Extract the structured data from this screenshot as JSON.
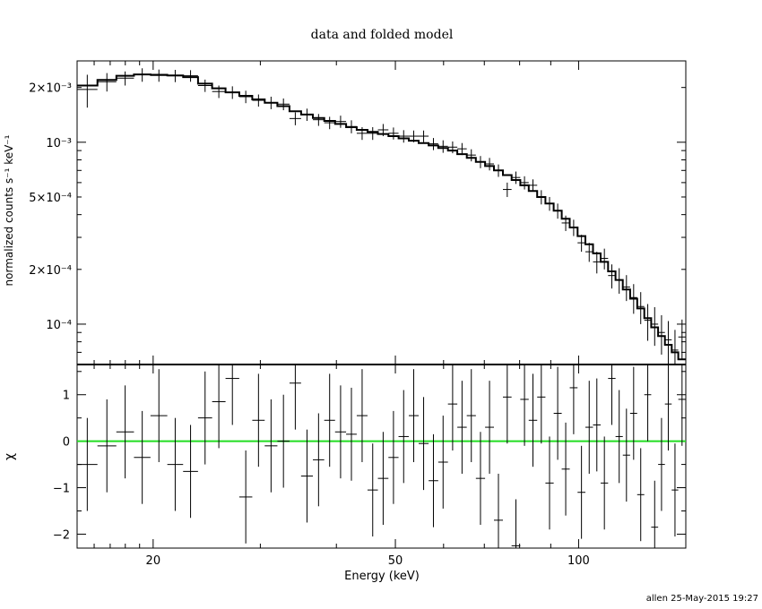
{
  "title": "data and folded model",
  "footer": "allen 25-May-2015 19:27",
  "chart_data": [
    {
      "type": "scatter",
      "panel": "top",
      "xlabel": "Energy (keV)",
      "ylabel": "normalized counts s⁻¹ keV⁻¹",
      "xscale": "log",
      "yscale": "log",
      "xlim": [
        15,
        150
      ],
      "ylim": [
        6e-05,
        0.0028
      ],
      "y_ticks": [
        {
          "value": 0.0001,
          "label": "10⁻⁴"
        },
        {
          "value": 0.0002,
          "label": "2×10⁻⁴"
        },
        {
          "value": 0.0005,
          "label": "5×10⁻⁴"
        },
        {
          "value": 0.001,
          "label": "10⁻³"
        },
        {
          "value": 0.002,
          "label": "2×10⁻³"
        }
      ],
      "series": [
        {
          "kind": "data",
          "color": "#000000",
          "points": [
            [
              15.0,
              16.2,
              0.00195,
              0.0004
            ],
            [
              16.2,
              17.4,
              0.00215,
              0.00025
            ],
            [
              17.4,
              18.6,
              0.00225,
              0.0002
            ],
            [
              18.6,
              19.8,
              0.00235,
              0.0002
            ],
            [
              19.8,
              21.1,
              0.00233,
              0.00018
            ],
            [
              21.1,
              22.4,
              0.00232,
              0.00018
            ],
            [
              22.4,
              23.7,
              0.00232,
              0.00017
            ],
            [
              23.7,
              25.0,
              0.00205,
              0.00016
            ],
            [
              25.0,
              26.3,
              0.0019,
              0.00015
            ],
            [
              26.3,
              27.7,
              0.00188,
              0.00015
            ],
            [
              27.7,
              29.1,
              0.00178,
              0.00014
            ],
            [
              29.1,
              30.5,
              0.0017,
              0.00013
            ],
            [
              30.5,
              32.0,
              0.00165,
              0.00013
            ],
            [
              32.0,
              33.5,
              0.00162,
              0.00012
            ],
            [
              33.5,
              35.0,
              0.00135,
              0.00011
            ],
            [
              35.0,
              36.6,
              0.00142,
              0.00011
            ],
            [
              36.6,
              38.2,
              0.00133,
              0.0001
            ],
            [
              38.2,
              39.8,
              0.00128,
              0.0001
            ],
            [
              39.8,
              41.5,
              0.0013,
              0.0001
            ],
            [
              41.5,
              43.2,
              0.00122,
              0.0001
            ],
            [
              43.2,
              45.0,
              0.00112,
              9e-05
            ],
            [
              45.0,
              46.8,
              0.00112,
              9e-05
            ],
            [
              46.8,
              48.7,
              0.00117,
              9e-05
            ],
            [
              48.7,
              50.6,
              0.00112,
              8.5e-05
            ],
            [
              50.6,
              52.6,
              0.00108,
              8.5e-05
            ],
            [
              52.6,
              54.6,
              0.00108,
              8e-05
            ],
            [
              54.6,
              56.7,
              0.00108,
              8e-05
            ],
            [
              56.7,
              58.8,
              0.00098,
              7.5e-05
            ],
            [
              58.8,
              61.0,
              0.00095,
              7.5e-05
            ],
            [
              61.0,
              63.2,
              0.00094,
              7e-05
            ],
            [
              63.2,
              65.5,
              0.00092,
              7e-05
            ],
            [
              65.5,
              67.8,
              0.00085,
              6.5e-05
            ],
            [
              67.8,
              70.2,
              0.00078,
              6e-05
            ],
            [
              70.2,
              72.6,
              0.00076,
              6e-05
            ],
            [
              72.6,
              75.1,
              0.0007,
              5.5e-05
            ],
            [
              75.1,
              77.6,
              0.00055,
              5e-05
            ],
            [
              77.6,
              80.2,
              0.00064,
              5e-05
            ],
            [
              80.2,
              82.8,
              0.0006,
              5e-05
            ],
            [
              82.8,
              85.5,
              0.00058,
              4.5e-05
            ],
            [
              85.5,
              88.2,
              0.0005,
              4.5e-05
            ],
            [
              88.2,
              91.0,
              0.00046,
              4e-05
            ],
            [
              91.0,
              93.8,
              0.00042,
              4e-05
            ],
            [
              93.8,
              96.7,
              0.00036,
              3.5e-05
            ],
            [
              96.7,
              99.6,
              0.00034,
              3.5e-05
            ],
            [
              99.6,
              102.6,
              0.00028,
              3e-05
            ],
            [
              102.6,
              105.6,
              0.00025,
              3e-05
            ],
            [
              105.6,
              108.7,
              0.00022,
              3e-05
            ],
            [
              108.7,
              111.8,
              0.00023,
              3e-05
            ],
            [
              111.8,
              115.0,
              0.000185,
              2.8e-05
            ],
            [
              115.0,
              118.2,
              0.000175,
              2.8e-05
            ],
            [
              118.2,
              121.5,
              0.00016,
              2.6e-05
            ],
            [
              121.5,
              124.8,
              0.00014,
              2.6e-05
            ],
            [
              124.8,
              128.2,
              0.000125,
              2.5e-05
            ],
            [
              128.2,
              131.6,
              0.000105,
              2.4e-05
            ],
            [
              131.6,
              135.1,
              0.0001,
              2.4e-05
            ],
            [
              135.1,
              138.6,
              9e-05,
              2.2e-05
            ],
            [
              138.6,
              142.2,
              8.2e-05,
              2.2e-05
            ],
            [
              142.2,
              145.8,
              7.2e-05,
              2.1e-05
            ],
            [
              145.8,
              150.0,
              8.5e-05,
              2.1e-05
            ]
          ]
        },
        {
          "kind": "model",
          "color": "#000000",
          "steps": [
            [
              15.0,
              16.2,
              0.00205
            ],
            [
              16.2,
              17.4,
              0.0022
            ],
            [
              17.4,
              18.6,
              0.00232
            ],
            [
              18.6,
              19.8,
              0.00236
            ],
            [
              19.8,
              21.1,
              0.00235
            ],
            [
              21.1,
              22.4,
              0.00233
            ],
            [
              22.4,
              23.7,
              0.00228
            ],
            [
              23.7,
              25.0,
              0.0021
            ],
            [
              25.0,
              26.3,
              0.00198
            ],
            [
              26.3,
              27.7,
              0.00188
            ],
            [
              27.7,
              29.1,
              0.0018
            ],
            [
              29.1,
              30.5,
              0.00172
            ],
            [
              30.5,
              32.0,
              0.00165
            ],
            [
              32.0,
              33.5,
              0.00158
            ],
            [
              33.5,
              35.0,
              0.00148
            ],
            [
              35.0,
              36.6,
              0.00142
            ],
            [
              36.6,
              38.2,
              0.00136
            ],
            [
              38.2,
              39.8,
              0.00131
            ],
            [
              39.8,
              41.5,
              0.00126
            ],
            [
              41.5,
              43.2,
              0.00121
            ],
            [
              43.2,
              45.0,
              0.00117
            ],
            [
              45.0,
              46.8,
              0.00114
            ],
            [
              46.8,
              48.7,
              0.00111
            ],
            [
              48.7,
              50.6,
              0.00108
            ],
            [
              50.6,
              52.6,
              0.00105
            ],
            [
              52.6,
              54.6,
              0.00102
            ],
            [
              54.6,
              56.7,
              0.00099
            ],
            [
              56.7,
              58.8,
              0.00096
            ],
            [
              58.8,
              61.0,
              0.00093
            ],
            [
              61.0,
              63.2,
              0.0009
            ],
            [
              63.2,
              65.5,
              0.00086
            ],
            [
              65.5,
              67.8,
              0.00082
            ],
            [
              67.8,
              70.2,
              0.00078
            ],
            [
              70.2,
              72.6,
              0.00074
            ],
            [
              72.6,
              75.1,
              0.0007
            ],
            [
              75.1,
              77.6,
              0.00066
            ],
            [
              77.6,
              80.2,
              0.00062
            ],
            [
              80.2,
              82.8,
              0.00058
            ],
            [
              82.8,
              85.5,
              0.00054
            ],
            [
              85.5,
              88.2,
              0.0005
            ],
            [
              88.2,
              91.0,
              0.00046
            ],
            [
              91.0,
              93.8,
              0.00042
            ],
            [
              93.8,
              96.7,
              0.00038
            ],
            [
              96.7,
              99.6,
              0.00034
            ],
            [
              99.6,
              102.6,
              0.000305
            ],
            [
              102.6,
              105.6,
              0.000275
            ],
            [
              105.6,
              108.7,
              0.000245
            ],
            [
              108.7,
              111.8,
              0.00022
            ],
            [
              111.8,
              115.0,
              0.000195
            ],
            [
              115.0,
              118.2,
              0.000175
            ],
            [
              118.2,
              121.5,
              0.000155
            ],
            [
              121.5,
              124.8,
              0.000138
            ],
            [
              124.8,
              128.2,
              0.000122
            ],
            [
              128.2,
              131.6,
              0.000108
            ],
            [
              131.6,
              135.1,
              9.6e-05
            ],
            [
              135.1,
              138.6,
              8.6e-05
            ],
            [
              138.6,
              142.2,
              7.7e-05
            ],
            [
              142.2,
              145.8,
              7e-05
            ],
            [
              145.8,
              150.0,
              6.4e-05
            ]
          ]
        }
      ]
    },
    {
      "type": "scatter",
      "panel": "bottom",
      "xlabel": "Energy (keV)",
      "ylabel": "χ",
      "xscale": "log",
      "xlim": [
        15,
        150
      ],
      "ylim": [
        -2.3,
        1.65
      ],
      "x_ticks": [
        {
          "value": 20,
          "label": "20"
        },
        {
          "value": 50,
          "label": "50"
        },
        {
          "value": 100,
          "label": "100"
        }
      ],
      "y_ticks": [
        {
          "value": -2,
          "label": "−2"
        },
        {
          "value": -1,
          "label": "−1"
        },
        {
          "value": 0,
          "label": "0"
        },
        {
          "value": 1,
          "label": "1"
        }
      ],
      "zero_line_color": "#22dd22",
      "residuals": [
        [
          15.0,
          16.2,
          -0.5
        ],
        [
          16.2,
          17.4,
          -0.1
        ],
        [
          17.4,
          18.6,
          0.2
        ],
        [
          18.6,
          19.8,
          -0.35
        ],
        [
          19.8,
          21.1,
          0.55
        ],
        [
          21.1,
          22.4,
          -0.5
        ],
        [
          22.4,
          23.7,
          -0.65
        ],
        [
          23.7,
          25.0,
          0.5
        ],
        [
          25.0,
          26.3,
          0.85
        ],
        [
          26.3,
          27.7,
          1.35
        ],
        [
          27.7,
          29.1,
          -1.2
        ],
        [
          29.1,
          30.5,
          0.45
        ],
        [
          30.5,
          32.0,
          -0.1
        ],
        [
          32.0,
          33.5,
          0.0
        ],
        [
          33.5,
          35.0,
          1.25
        ],
        [
          35.0,
          36.6,
          -0.75
        ],
        [
          36.6,
          38.2,
          -0.4
        ],
        [
          38.2,
          39.8,
          0.45
        ],
        [
          39.8,
          41.5,
          0.2
        ],
        [
          41.5,
          43.2,
          0.15
        ],
        [
          43.2,
          45.0,
          0.55
        ],
        [
          45.0,
          46.8,
          -1.05
        ],
        [
          46.8,
          48.7,
          -0.8
        ],
        [
          48.7,
          50.6,
          -0.35
        ],
        [
          50.6,
          52.6,
          0.1
        ],
        [
          52.6,
          54.6,
          0.55
        ],
        [
          54.6,
          56.7,
          -0.05
        ],
        [
          56.7,
          58.8,
          -0.85
        ],
        [
          58.8,
          61.0,
          -0.45
        ],
        [
          61.0,
          63.2,
          0.8
        ],
        [
          63.2,
          65.5,
          0.3
        ],
        [
          65.5,
          67.8,
          0.55
        ],
        [
          67.8,
          70.2,
          -0.8
        ],
        [
          70.2,
          72.6,
          0.3
        ],
        [
          72.6,
          75.1,
          -1.7
        ],
        [
          75.1,
          77.6,
          0.95
        ],
        [
          77.6,
          80.2,
          -2.25
        ],
        [
          80.2,
          82.8,
          0.9
        ],
        [
          82.8,
          85.5,
          0.45
        ],
        [
          85.5,
          88.2,
          0.95
        ],
        [
          88.2,
          91.0,
          -0.9
        ],
        [
          91.0,
          93.8,
          0.6
        ],
        [
          93.8,
          96.7,
          -0.6
        ],
        [
          96.7,
          99.6,
          1.15
        ],
        [
          99.6,
          102.6,
          -1.1
        ],
        [
          102.6,
          105.6,
          0.3
        ],
        [
          105.6,
          108.7,
          0.35
        ],
        [
          108.7,
          111.8,
          -0.9
        ],
        [
          111.8,
          115.0,
          1.35
        ],
        [
          115.0,
          118.2,
          0.1
        ],
        [
          118.2,
          121.5,
          -0.3
        ],
        [
          121.5,
          124.8,
          0.6
        ],
        [
          124.8,
          128.2,
          -1.15
        ],
        [
          128.2,
          131.6,
          1.0
        ],
        [
          131.6,
          135.1,
          -1.85
        ],
        [
          135.1,
          138.6,
          -0.5
        ],
        [
          138.6,
          142.2,
          0.8
        ],
        [
          142.2,
          145.8,
          -1.05
        ],
        [
          145.8,
          150.0,
          0.9
        ]
      ]
    }
  ]
}
